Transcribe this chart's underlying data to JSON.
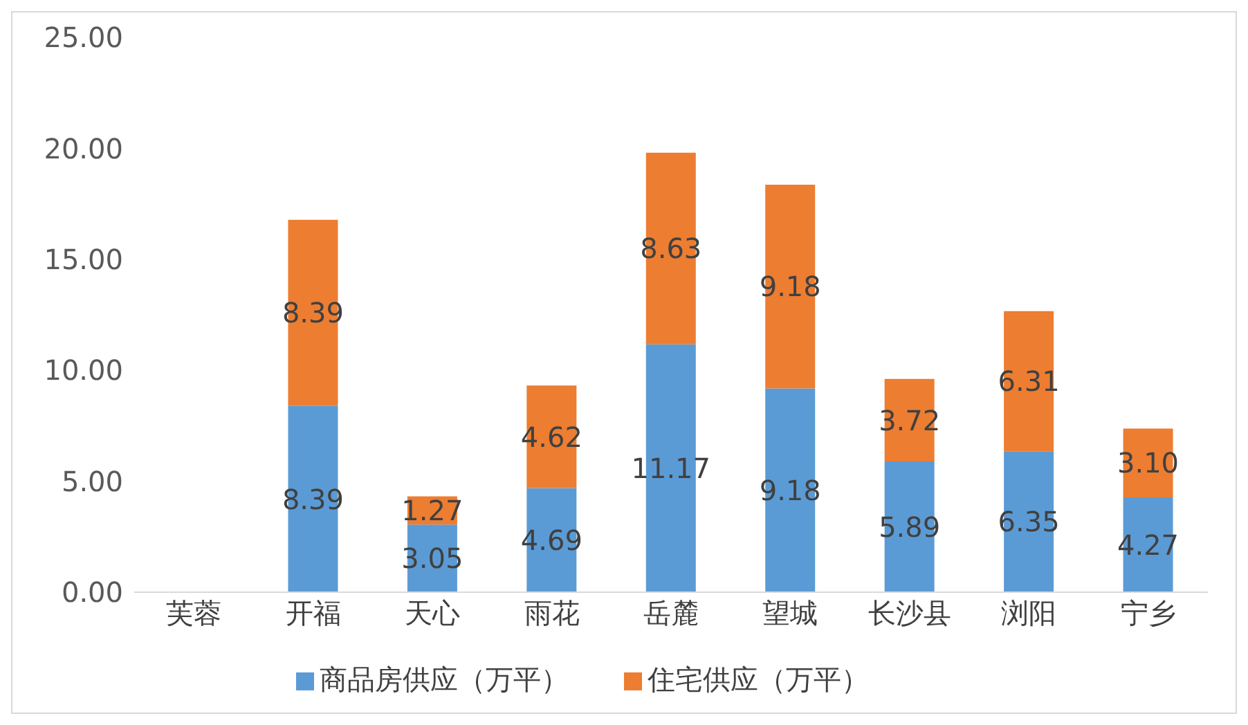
{
  "chart_data": {
    "type": "bar",
    "stacked": true,
    "categories": [
      "芙蓉",
      "开福",
      "天心",
      "雨花",
      "岳麓",
      "望城",
      "长沙县",
      "浏阳",
      "宁乡"
    ],
    "series": [
      {
        "name": "商品房供应（万平）",
        "color": "#5b9bd5",
        "values": [
          null,
          8.39,
          3.05,
          4.69,
          11.17,
          9.18,
          5.89,
          6.35,
          4.27
        ],
        "value_labels": [
          null,
          "8.39",
          "3.05",
          "4.69",
          "11.17",
          "9.18",
          "5.89",
          "6.35",
          "4.27"
        ]
      },
      {
        "name": "住宅供应（万平）",
        "color": "#ed7d31",
        "values": [
          null,
          8.39,
          1.27,
          4.62,
          8.63,
          9.18,
          3.72,
          6.31,
          3.1
        ],
        "value_labels": [
          null,
          "8.39",
          "1.27",
          "4.62",
          "8.63",
          "9.18",
          "3.72",
          "6.31",
          "3.10"
        ]
      }
    ],
    "ylim": [
      0,
      25
    ],
    "yticks": [
      {
        "value": 0,
        "label": "0.00"
      },
      {
        "value": 5,
        "label": "5.00"
      },
      {
        "value": 10,
        "label": "10.00"
      },
      {
        "value": 15,
        "label": "15.00"
      },
      {
        "value": 20,
        "label": "20.00"
      },
      {
        "value": 25,
        "label": "25.00"
      }
    ],
    "grid": false,
    "legend": "bottom"
  }
}
